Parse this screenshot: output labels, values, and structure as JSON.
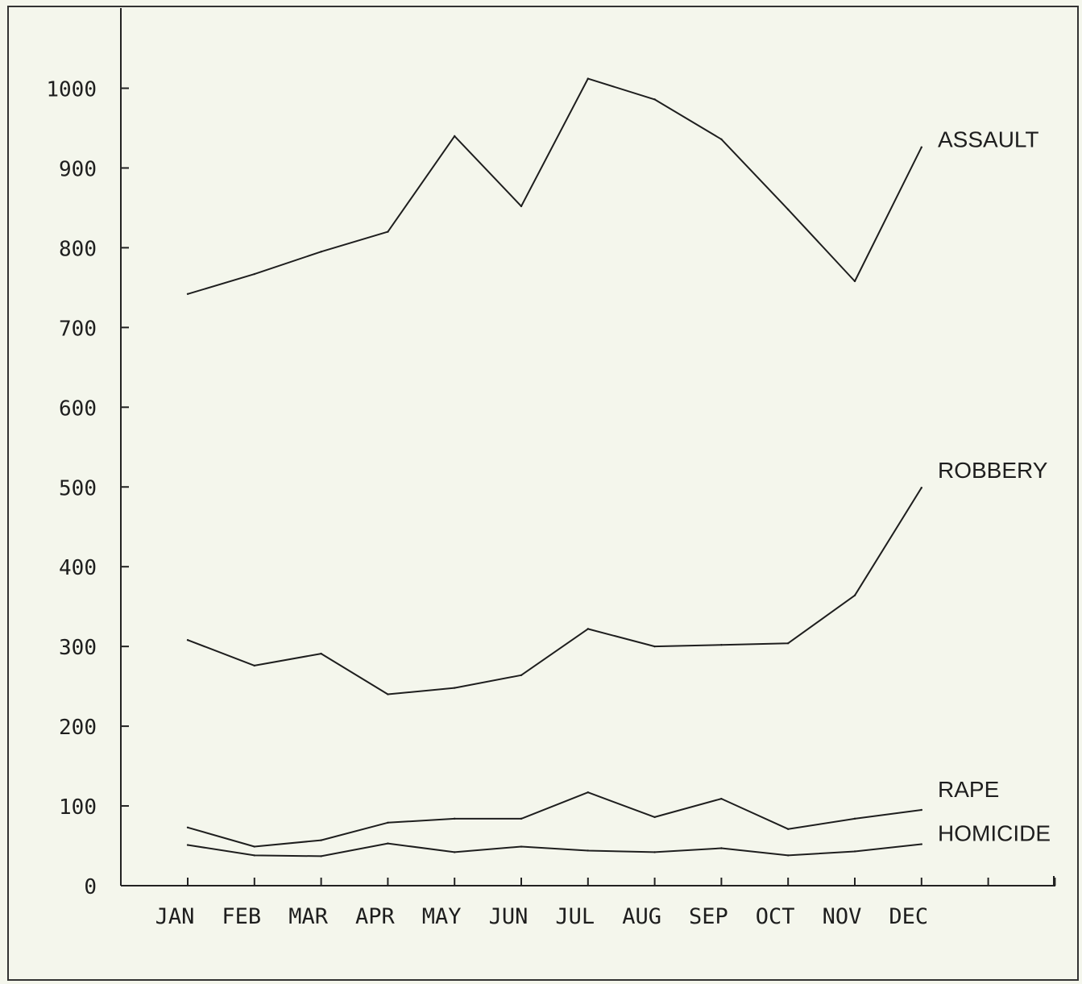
{
  "chart_data": {
    "type": "line",
    "title": "",
    "xlabel": "",
    "ylabel": "",
    "categories": [
      "JAN",
      "FEB",
      "MAR",
      "APR",
      "MAY",
      "JUN",
      "JUL",
      "AUG",
      "SEP",
      "OCT",
      "NOV",
      "DEC"
    ],
    "ylim": [
      0,
      1100
    ],
    "yticks": [
      0,
      100,
      200,
      300,
      400,
      500,
      600,
      700,
      800,
      900,
      1000
    ],
    "ytick_labels": [
      "0",
      "100",
      "200",
      "300",
      "400",
      "500",
      "600",
      "700",
      "800",
      "900",
      "1000"
    ],
    "grid": false,
    "legend": "line-end labels",
    "series": [
      {
        "name": "ASSAULT",
        "values": [
          742,
          767,
          795,
          820,
          940,
          852,
          1012,
          986,
          936,
          848,
          758,
          926
        ]
      },
      {
        "name": "ROBBERY",
        "values": [
          308,
          276,
          291,
          240,
          248,
          264,
          322,
          300,
          302,
          304,
          364,
          499
        ]
      },
      {
        "name": "RAPE",
        "values": [
          73,
          49,
          57,
          79,
          84,
          84,
          117,
          86,
          109,
          71,
          84,
          95
        ]
      },
      {
        "name": "HOMICIDE",
        "values": [
          51,
          38,
          37,
          53,
          42,
          49,
          44,
          42,
          47,
          38,
          43,
          52
        ]
      }
    ],
    "colors": {
      "line": "#1e1e1e",
      "background": "#f4f6ec"
    }
  }
}
